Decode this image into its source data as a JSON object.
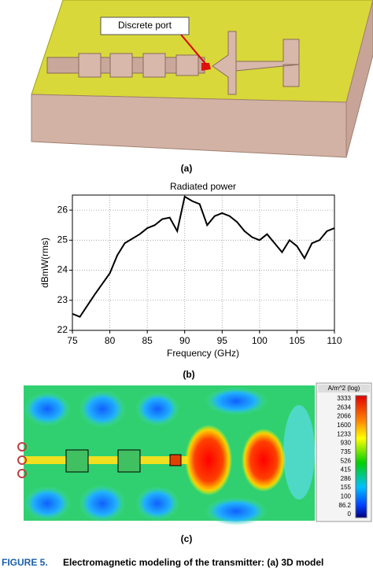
{
  "panel_a": {
    "annotation": "Discrete port",
    "label": "(a)"
  },
  "chart_data": {
    "type": "line",
    "title": "Radiated power",
    "x_label": "Frequency (GHz)",
    "y_label": "dBmW(rms)",
    "x": [
      75,
      76,
      78,
      80,
      81,
      82,
      84,
      85,
      86,
      87,
      88,
      89,
      90,
      91,
      92,
      93,
      94,
      95,
      96,
      97,
      98,
      99,
      100,
      101,
      102,
      103,
      104,
      105,
      106,
      107,
      108,
      109,
      110
    ],
    "series": [
      {
        "color": "#000000",
        "values": [
          22.55,
          22.45,
          23.2,
          23.9,
          24.5,
          24.9,
          25.2,
          25.4,
          25.5,
          25.7,
          25.75,
          25.3,
          26.45,
          26.3,
          26.2,
          25.5,
          25.8,
          25.9,
          25.8,
          25.6,
          25.3,
          25.1,
          25.0,
          25.2,
          24.9,
          24.6,
          25.0,
          24.8,
          24.4,
          24.9,
          25.0,
          25.3,
          25.4
        ]
      }
    ],
    "xlim": [
      75,
      110
    ],
    "ylim": [
      22,
      26.5
    ],
    "xticks": [
      75,
      80,
      85,
      90,
      95,
      100,
      105,
      110
    ],
    "yticks": [
      22,
      23,
      24,
      25,
      26
    ],
    "grid": true
  },
  "panel_b": {
    "label": "(b)"
  },
  "panel_c": {
    "colorbar_title": "A/m^2 (log)",
    "colorbar_labels": [
      "3333",
      "2634",
      "2066",
      "1600",
      "1233",
      "930",
      "735",
      "526",
      "415",
      "286",
      "155",
      "100",
      "86.2",
      "0"
    ],
    "label": "(c)"
  },
  "caption": {
    "figure": "FIGURE 5.",
    "text": "Electromagnetic modeling of the transmitter: (a) 3D model"
  }
}
